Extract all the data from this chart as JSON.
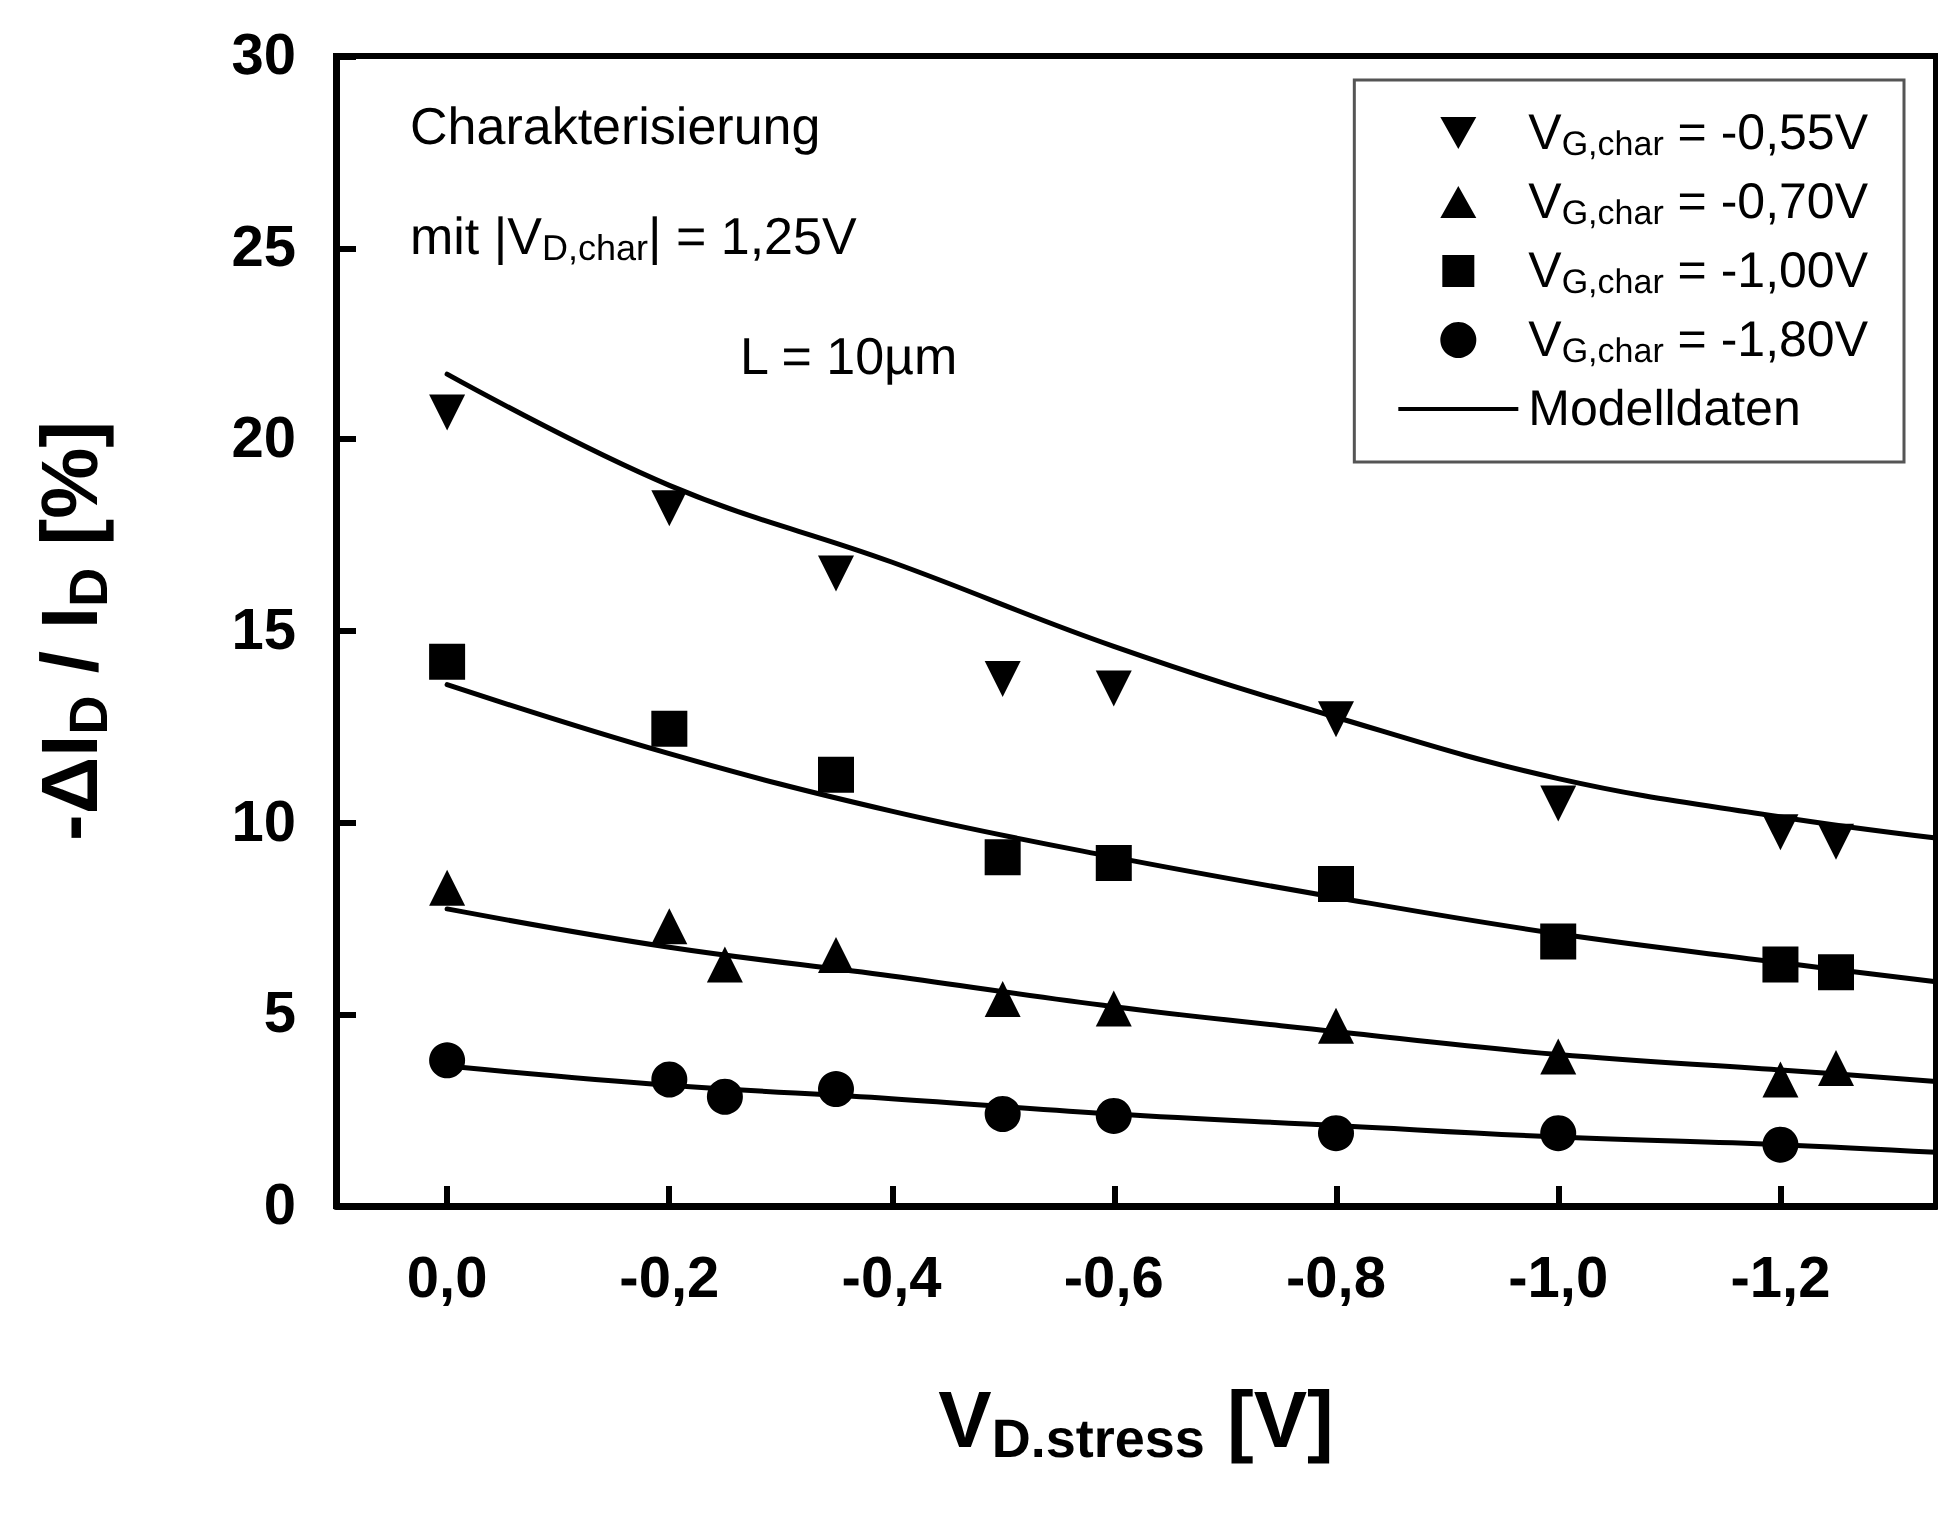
{
  "chart_data": {
    "type": "scatter",
    "xlabel": "V$_{D.stress}$ [V]",
    "ylabel": "-ΔI$_{D}$ / I$_{D}$ [%]",
    "annotations": [
      "Charakterisierung",
      "mit |V$_{D,char}$| = 1,25V",
      "L = 10µm"
    ],
    "xlim": [
      0.1,
      -1.34
    ],
    "xticks": [
      {
        "value": 0,
        "label": "0,0"
      },
      {
        "value": -0.2,
        "label": "-0,2"
      },
      {
        "value": -0.4,
        "label": "-0,4"
      },
      {
        "value": -0.6,
        "label": "-0,6"
      },
      {
        "value": -0.8,
        "label": "-0,8"
      },
      {
        "value": -1.0,
        "label": "-1,0"
      },
      {
        "value": -1.2,
        "label": "-1,2"
      }
    ],
    "ylim": [
      0,
      30
    ],
    "yticks": [
      0,
      5,
      10,
      15,
      20,
      25,
      30
    ],
    "grid": false,
    "legend": "top right",
    "series": [
      {
        "name": "V$_{G,char}$ = -0,55V",
        "marker": "triangle-down",
        "color": "#000000",
        "x": [
          0,
          -0.2,
          -0.35,
          -0.5,
          -0.6,
          -0.8,
          -1.0,
          -1.2,
          -1.25
        ],
        "values": [
          20.7,
          18.2,
          16.5,
          13.75,
          13.5,
          12.7,
          10.5,
          9.75,
          9.5
        ]
      },
      {
        "name": "V$_{G,char}$ = -0,70V",
        "marker": "triangle",
        "color": "#000000",
        "x": [
          0,
          -0.2,
          -0.25,
          -0.35,
          -0.5,
          -0.6,
          -0.8,
          -1.0,
          -1.2,
          -1.25
        ],
        "values": [
          8.3,
          7.3,
          6.3,
          6.55,
          5.4,
          5.15,
          4.7,
          3.9,
          3.3,
          3.6
        ]
      },
      {
        "name": "V$_{G,char}$ = -1,00V",
        "marker": "square",
        "color": "#000000",
        "x": [
          0,
          -0.2,
          -0.35,
          -0.5,
          -0.6,
          -0.8,
          -1.0,
          -1.2,
          -1.25
        ],
        "values": [
          14.2,
          12.45,
          11.25,
          9.1,
          8.95,
          8.4,
          6.9,
          6.3,
          6.1
        ]
      },
      {
        "name": "V$_{G,char}$ = -1,80V",
        "marker": "circle",
        "color": "#000000",
        "x": [
          0,
          -0.2,
          -0.25,
          -0.35,
          -0.5,
          -0.6,
          -0.8,
          -1.0,
          -1.2
        ],
        "values": [
          3.8,
          3.3,
          2.85,
          3.05,
          2.4,
          2.35,
          1.9,
          1.9,
          1.6
        ]
      },
      {
        "name": "Modelldaten",
        "type": "line",
        "marker": "none",
        "line_style": "solid",
        "color": "#000000",
        "x": [
          0,
          -0.2,
          -0.4,
          -0.6,
          -0.8,
          -1.0,
          -1.2,
          -1.34
        ],
        "values": [
          21.7,
          18.8,
          16.8,
          14.6,
          12.75,
          11.15,
          10.15,
          9.6
        ]
      },
      {
        "type": "line",
        "marker": "none",
        "line_style": "solid",
        "color": "#000000",
        "x": [
          0,
          -0.2,
          -0.4,
          -0.6,
          -0.8,
          -1.0,
          -1.2,
          -1.34
        ],
        "values": [
          13.6,
          11.8,
          10.3,
          9.1,
          8.05,
          7.1,
          6.35,
          5.85
        ]
      },
      {
        "type": "line",
        "marker": "none",
        "line_style": "solid",
        "color": "#000000",
        "x": [
          0,
          -0.2,
          -0.4,
          -0.6,
          -0.8,
          -1.0,
          -1.2,
          -1.34
        ],
        "values": [
          7.75,
          6.75,
          6.0,
          5.2,
          4.55,
          3.95,
          3.55,
          3.25
        ]
      },
      {
        "type": "line",
        "marker": "none",
        "line_style": "solid",
        "color": "#000000",
        "x": [
          0,
          -0.2,
          -0.4,
          -0.6,
          -0.8,
          -1.0,
          -1.2,
          -1.34
        ],
        "values": [
          3.65,
          3.15,
          2.8,
          2.4,
          2.1,
          1.8,
          1.6,
          1.4
        ]
      }
    ]
  }
}
